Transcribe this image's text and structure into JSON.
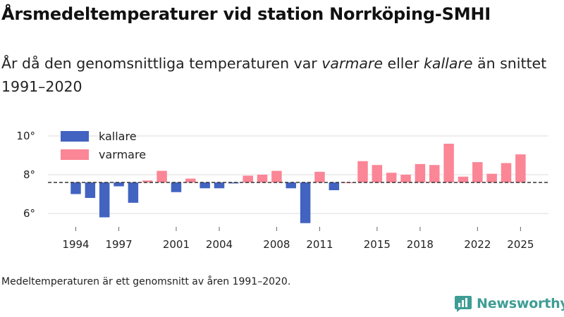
{
  "header": {
    "title": "Årsmedeltemperaturer vid station Norrköping-SMHI",
    "subtitle_part1": "År då den genomsnittliga temperaturen var ",
    "subtitle_warm": "varmare",
    "subtitle_part2": " eller ",
    "subtitle_cold": "kallare",
    "subtitle_part3": " än snittet 1991–2020"
  },
  "footer": {
    "note": "Medeltemperaturen är ett genomsnitt av åren 1991–2020.",
    "brand": "Newsworthy"
  },
  "colors": {
    "cold": "#4263c0",
    "warm": "#fb8696",
    "grid": "#dddddd",
    "baseline": "#333333",
    "brand": "#3e9d94"
  },
  "chart_data": {
    "type": "bar",
    "title": "Årsmedeltemperaturer vid station Norrköping-SMHI",
    "xlabel": "",
    "ylabel": "",
    "ylim": [
      5.2,
      10.7
    ],
    "baseline": 7.6,
    "y_ticks": [
      6,
      8,
      10
    ],
    "y_tick_labels": [
      "6°",
      "8°",
      "10°"
    ],
    "x_ticks": [
      1994,
      1997,
      2001,
      2004,
      2008,
      2011,
      2015,
      2018,
      2022,
      2025
    ],
    "legend": [
      {
        "key": "cold",
        "label": "kallare"
      },
      {
        "key": "warm",
        "label": "varmare"
      }
    ],
    "legend_position": "top-left",
    "grid": true,
    "years": [
      1994,
      1995,
      1996,
      1997,
      1998,
      1999,
      2000,
      2001,
      2002,
      2003,
      2004,
      2005,
      2006,
      2007,
      2008,
      2009,
      2010,
      2011,
      2012,
      2013,
      2014,
      2015,
      2016,
      2017,
      2018,
      2019,
      2020,
      2021,
      2022,
      2023,
      2024,
      2025
    ],
    "values": [
      7.0,
      6.8,
      5.8,
      7.4,
      6.55,
      7.7,
      8.2,
      7.1,
      7.8,
      7.3,
      7.3,
      7.55,
      7.95,
      8.0,
      8.2,
      7.3,
      5.5,
      8.15,
      7.2,
      7.6,
      8.7,
      8.5,
      8.1,
      8.0,
      8.55,
      8.5,
      9.6,
      7.9,
      8.65,
      8.05,
      8.6,
      9.05
    ]
  }
}
